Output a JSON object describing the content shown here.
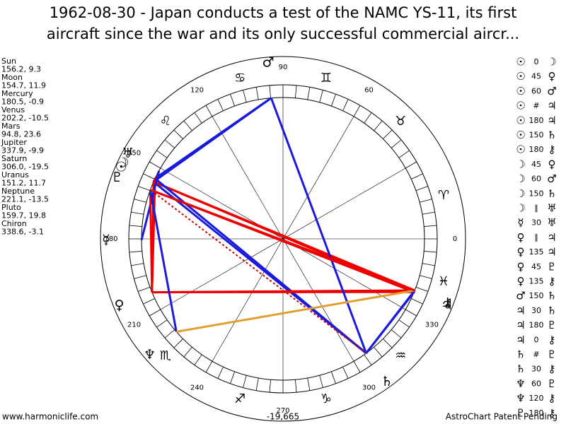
{
  "title": [
    "1962-08-30 - Japan conducts a test of the NAMC YS-11, its first",
    "aircraft since the war and its only successful commercial aircr..."
  ],
  "planets": [
    {
      "name": "Sun",
      "glyph": "☉",
      "position": "156.2, 9.3"
    },
    {
      "name": "Moon",
      "glyph": "☽",
      "position": "154.7, 11.9"
    },
    {
      "name": "Mercury",
      "glyph": "☿",
      "position": "180.5, -0.9"
    },
    {
      "name": "Venus",
      "glyph": "♀",
      "position": "202.2, -10.5"
    },
    {
      "name": "Mars",
      "glyph": "♂",
      "position": "94.8, 23.6"
    },
    {
      "name": "Jupiter",
      "glyph": "♃",
      "position": "337.9, -9.9"
    },
    {
      "name": "Saturn",
      "glyph": "♄",
      "position": "306.0, -19.5"
    },
    {
      "name": "Uranus",
      "glyph": "♅",
      "position": "151.2, 11.7"
    },
    {
      "name": "Neptune",
      "glyph": "♆",
      "position": "221.1, -13.5"
    },
    {
      "name": "Pluto",
      "glyph": "♇",
      "position": "159.7, 19.8"
    },
    {
      "name": "Chiron",
      "glyph": "⚷",
      "position": "338.6, -3.1"
    }
  ],
  "zodiac": [
    "♈",
    "♉",
    "♊",
    "♋",
    "♌",
    null,
    null,
    "♏",
    "♐",
    "♑",
    "♒",
    "♓"
  ],
  "degree_labels": [
    0,
    60,
    90,
    120,
    150,
    180,
    210,
    240,
    270,
    300,
    330
  ],
  "aspects": [
    {
      "from": "☉",
      "aspect": "0",
      "to": "☽",
      "color": "#ee0000"
    },
    {
      "from": "☉",
      "aspect": "45",
      "to": "♀",
      "color": "#ee0000"
    },
    {
      "from": "☉",
      "aspect": "60",
      "to": "♂",
      "color": "#1a1adc"
    },
    {
      "from": "☉",
      "aspect": "#",
      "to": "♃",
      "color": "#cc0000"
    },
    {
      "from": "☉",
      "aspect": "180",
      "to": "♃",
      "color": "#ee0000"
    },
    {
      "from": "☉",
      "aspect": "150",
      "to": "♄",
      "color": "#1a1adc"
    },
    {
      "from": "☉",
      "aspect": "180",
      "to": "⚷",
      "color": "#ee0000"
    },
    {
      "from": "☽",
      "aspect": "45",
      "to": "♀",
      "color": "#ee0000"
    },
    {
      "from": "☽",
      "aspect": "60",
      "to": "♂",
      "color": "#1a1adc"
    },
    {
      "from": "☽",
      "aspect": "150",
      "to": "♄",
      "color": "#1a1adc"
    },
    {
      "from": "☽",
      "aspect": "∥",
      "to": "♅",
      "color": "#cc0000"
    },
    {
      "from": "☿",
      "aspect": "30",
      "to": "♅",
      "color": "#1a1adc"
    },
    {
      "from": "♀",
      "aspect": "∥",
      "to": "♃",
      "color": "#cc0000"
    },
    {
      "from": "♀",
      "aspect": "135",
      "to": "♃",
      "color": "#ee0000"
    },
    {
      "from": "♀",
      "aspect": "45",
      "to": "♇",
      "color": "#ee0000"
    },
    {
      "from": "♀",
      "aspect": "135",
      "to": "⚷",
      "color": "#ee0000"
    },
    {
      "from": "♂",
      "aspect": "150",
      "to": "♄",
      "color": "#1a1adc"
    },
    {
      "from": "♃",
      "aspect": "30",
      "to": "♄",
      "color": "#1a1adc"
    },
    {
      "from": "♃",
      "aspect": "180",
      "to": "♇",
      "color": "#ee0000"
    },
    {
      "from": "♃",
      "aspect": "0",
      "to": "⚷",
      "color": "#ee0000"
    },
    {
      "from": "♄",
      "aspect": "#",
      "to": "♇",
      "color": "#cc0000"
    },
    {
      "from": "♄",
      "aspect": "30",
      "to": "⚷",
      "color": "#1a1adc"
    },
    {
      "from": "♆",
      "aspect": "60",
      "to": "♇",
      "color": "#1a1adc"
    },
    {
      "from": "♆",
      "aspect": "120",
      "to": "⚷",
      "color": "#e0a030"
    },
    {
      "from": "♇",
      "aspect": "180",
      "to": "⚷",
      "color": "#ee0000"
    }
  ],
  "footer": {
    "left": "www.harmoniclife.com",
    "center": "-19,665",
    "right": "AstroChart Patent Pending"
  }
}
